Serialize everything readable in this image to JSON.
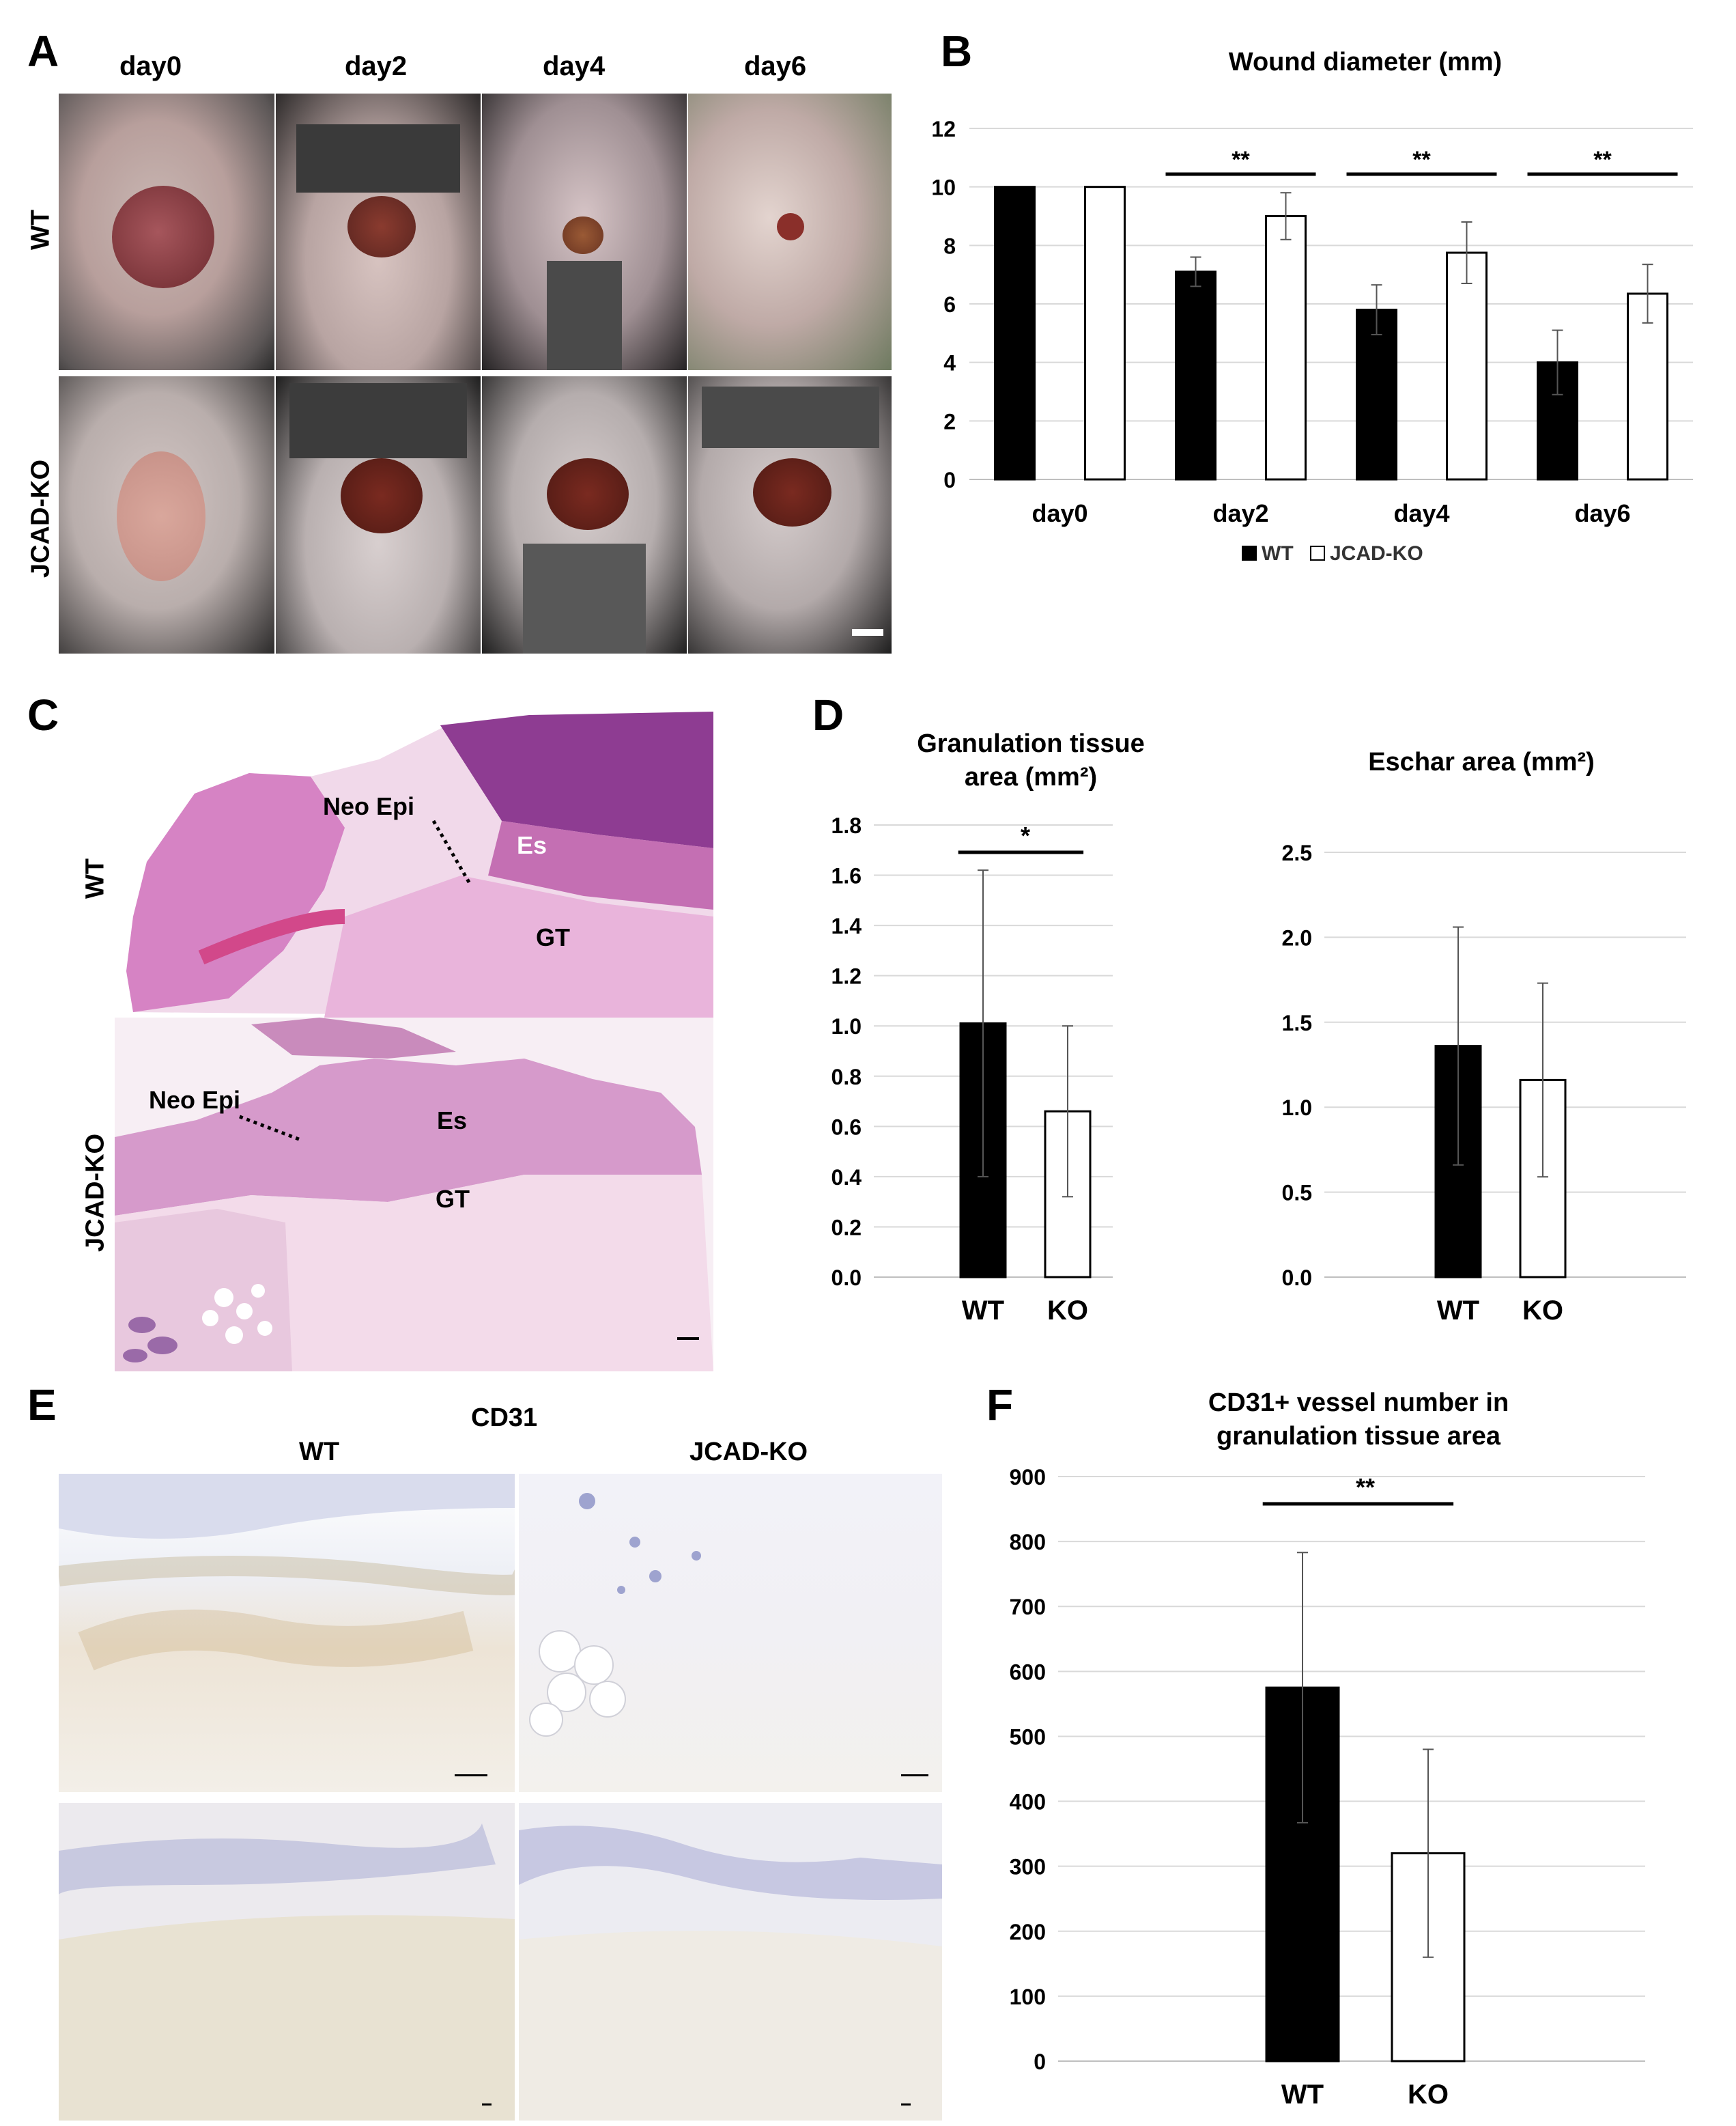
{
  "panels": {
    "A": {
      "letter": "A",
      "columns": [
        "day0",
        "day2",
        "day4",
        "day6"
      ],
      "rows": [
        "WT",
        "JCAD-KO"
      ]
    },
    "B": {
      "letter": "B"
    },
    "C": {
      "letter": "C",
      "rows": [
        "WT",
        "JCAD-KO"
      ],
      "annotations": {
        "neo_epi": "Neo Epi",
        "es": "Es",
        "gt": "GT"
      }
    },
    "D": {
      "letter": "D"
    },
    "E": {
      "letter": "E",
      "title": "CD31",
      "columns": [
        "WT",
        "JCAD-KO"
      ]
    },
    "F": {
      "letter": "F"
    }
  },
  "colors": {
    "wt_bar": "#000000",
    "ko_bar": "#ffffff",
    "grid": "#d9d9d9",
    "he_pink": "#d98fc7",
    "cd31_bg": "#e6e3ea"
  },
  "chart_data": [
    {
      "id": "B",
      "type": "bar",
      "title": "Wound diameter (mm)",
      "categories": [
        "day0",
        "day2",
        "day4",
        "day6"
      ],
      "series": [
        {
          "name": "WT",
          "values": [
            10,
            7.1,
            5.8,
            4.0
          ],
          "errors": [
            0,
            0.5,
            0.85,
            1.1
          ]
        },
        {
          "name": "JCAD-KO",
          "values": [
            10,
            9.0,
            7.75,
            6.35
          ],
          "errors": [
            0,
            0.8,
            1.05,
            1.0
          ]
        }
      ],
      "ylim": [
        0,
        12
      ],
      "yticks": [
        "0",
        "2",
        "4",
        "6",
        "8",
        "10",
        "12"
      ],
      "significance": [
        {
          "category": "day2",
          "label": "**"
        },
        {
          "category": "day4",
          "label": "**"
        },
        {
          "category": "day6",
          "label": "**"
        }
      ],
      "legend_position": "bottom",
      "grid": true
    },
    {
      "id": "D1",
      "type": "bar",
      "title": "Granulation tissue area (mm²)",
      "categories": [
        "WT",
        "KO"
      ],
      "values": [
        1.01,
        0.66
      ],
      "errors": [
        0.61,
        0.34
      ],
      "ylim": [
        0,
        1.8
      ],
      "yticks": [
        "0.0",
        "0.2",
        "0.4",
        "0.6",
        "0.8",
        "1.0",
        "1.2",
        "1.4",
        "1.6",
        "1.8"
      ],
      "significance": [
        {
          "label": "*"
        }
      ],
      "grid": true
    },
    {
      "id": "D2",
      "type": "bar",
      "title": "Eschar area (mm²)",
      "categories": [
        "WT",
        "KO"
      ],
      "values": [
        1.36,
        1.16
      ],
      "errors": [
        0.7,
        0.57
      ],
      "ylim": [
        0,
        2.5
      ],
      "yticks": [
        "0.0",
        "0.5",
        "1.0",
        "1.5",
        "2.0",
        "2.5"
      ],
      "grid": true
    },
    {
      "id": "F",
      "type": "bar",
      "title": "CD31+ vessel number in granulation tissue area",
      "categories": [
        "WT",
        "KO"
      ],
      "values": [
        575,
        320
      ],
      "errors": [
        208,
        160
      ],
      "ylim": [
        0,
        900
      ],
      "yticks": [
        "0",
        "100",
        "200",
        "300",
        "400",
        "500",
        "600",
        "700",
        "800",
        "900"
      ],
      "significance": [
        {
          "label": "**"
        }
      ],
      "grid": true
    }
  ]
}
